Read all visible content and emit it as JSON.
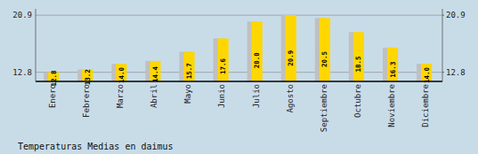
{
  "chart_data": {
    "type": "bar",
    "title": "Temperaturas Medias en daimus",
    "categories": [
      "Enero",
      "Febrero",
      "Marzo",
      "Abril",
      "Mayo",
      "Junio",
      "Julio",
      "Agosto",
      "Septiembre",
      "Octubre",
      "Noviembre",
      "Diciembre"
    ],
    "series": [
      {
        "color": "#C0C0C0",
        "values": [
          12.8,
          13.2,
          14.0,
          14.4,
          15.7,
          17.6,
          20.0,
          20.9,
          20.5,
          18.5,
          16.3,
          14.0
        ]
      },
      {
        "color": "#FFD700",
        "values": [
          12.8,
          13.2,
          14.0,
          14.4,
          15.7,
          17.6,
          20.0,
          20.9,
          20.5,
          18.5,
          16.3,
          14.0
        ],
        "value_labels": [
          "12.8",
          "13.2",
          "14.0",
          "14.4",
          "15.7",
          "17.6",
          "20.0",
          "20.9",
          "20.5",
          "18.5",
          "16.3",
          "14.0"
        ]
      }
    ],
    "ylim": [
      11.5,
      21.8
    ],
    "yticks": [
      12.8,
      20.9
    ],
    "y2lim": [
      11.5,
      21.8
    ],
    "y2ticks": [
      12.8,
      20.9
    ],
    "grid": true,
    "data_labels": true
  }
}
